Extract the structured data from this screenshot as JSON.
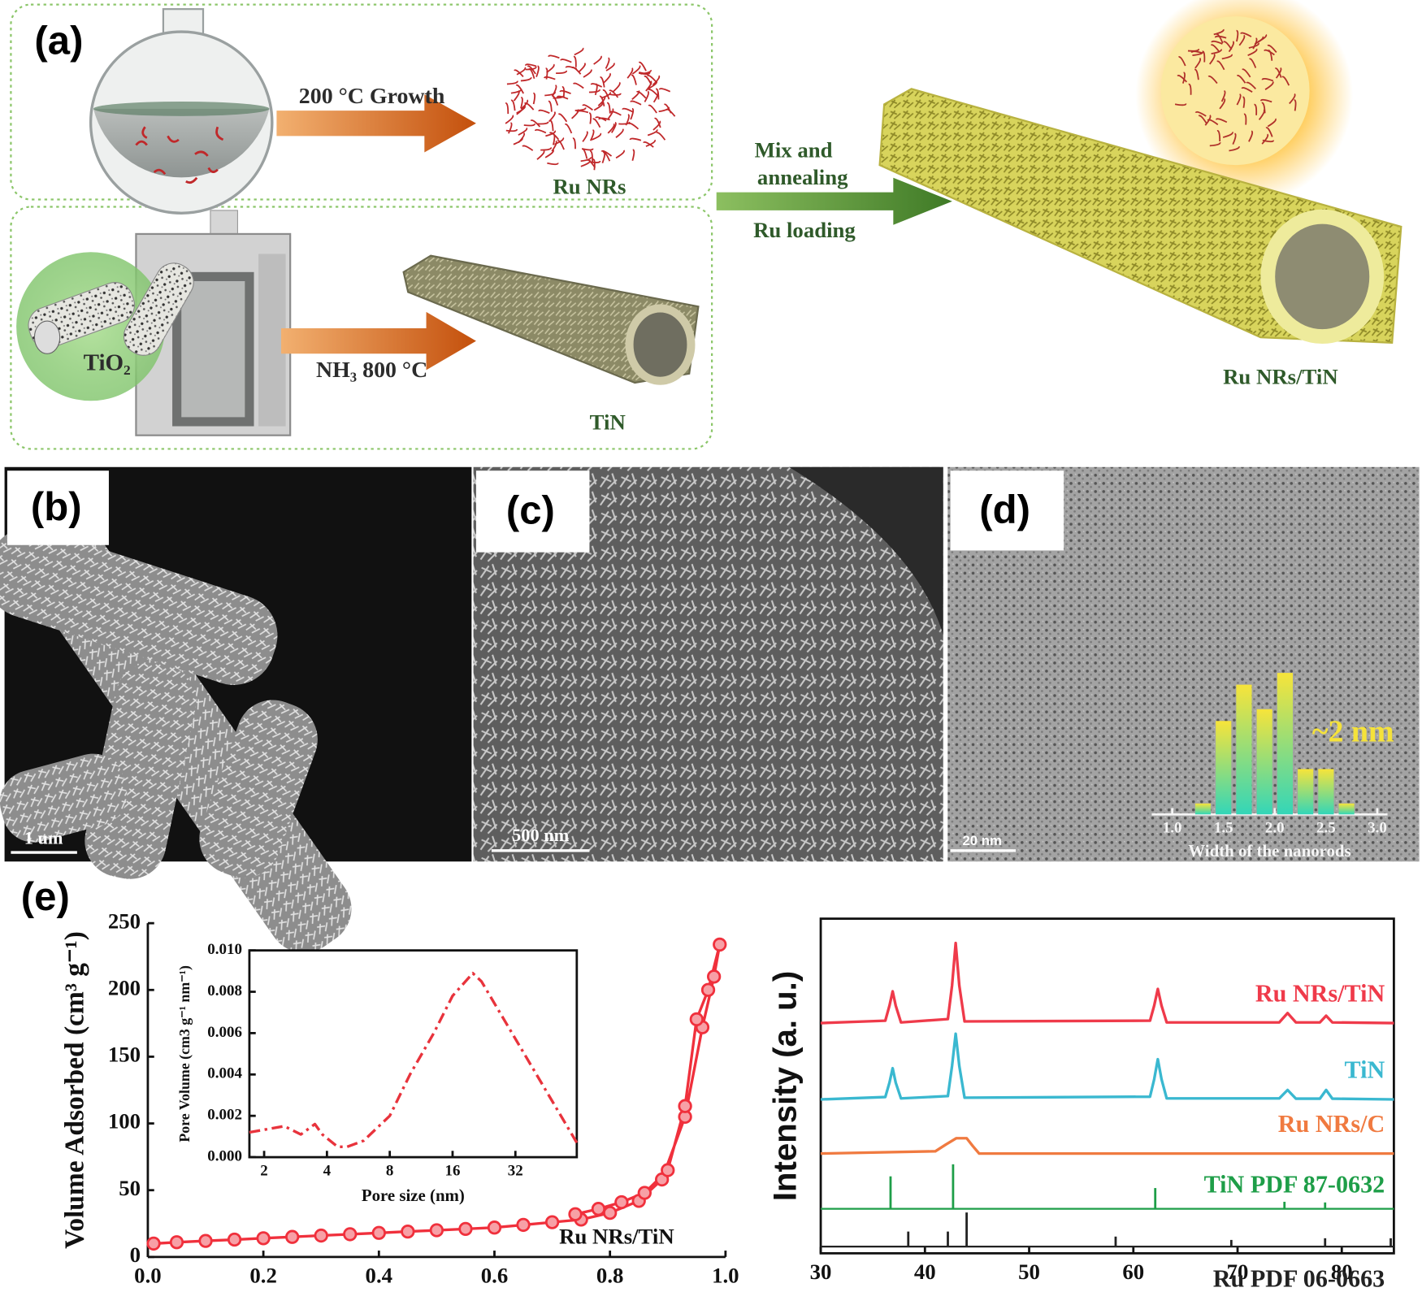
{
  "panels": {
    "a": {
      "label": "(a)",
      "growth": "200 °C Growth",
      "ru_nrs": "Ru NRs",
      "tio2": "TiO₂",
      "nh3": "NH₃ 800 °C",
      "tin": "TiN",
      "mix": "Mix and",
      "annealing": "annealing",
      "loading": "Ru loading",
      "product": "Ru NRs/TiN"
    },
    "b": {
      "label": "(b)",
      "scale_bar": "1 um"
    },
    "c": {
      "label": "(c)",
      "scale_bar": "500 nm"
    },
    "d": {
      "label": "(d)",
      "scale_bar": "20 nm"
    },
    "e": {
      "label": "(e)"
    }
  },
  "chart_data": [
    {
      "type": "histogram",
      "x_label": "Width of the nanorods",
      "annotation": "~2 nm",
      "bins": [
        1.2,
        1.4,
        1.6,
        1.8,
        2.0,
        2.2,
        2.4,
        2.6,
        2.8
      ],
      "values": [
        12,
        103,
        143,
        116,
        156,
        50,
        50,
        12
      ],
      "colors": [
        "#f7e43a",
        "#33d6b8"
      ],
      "xlim": [
        0.8,
        3.1
      ],
      "ylim": [
        0,
        160
      ],
      "xticks": [
        {
          "value": 1,
          "label": "1.0"
        },
        1.5,
        {
          "value": 2,
          "label": "2.0"
        },
        2.5,
        {
          "value": 3,
          "label": "3.0"
        }
      ]
    },
    {
      "type": "line",
      "y_label": "Volume Adsorbed (cm³ g⁻¹)",
      "x": [
        0.01,
        0.05,
        0.1,
        0.15,
        0.2,
        0.25,
        0.3,
        0.35,
        0.4,
        0.45,
        0.5,
        0.55,
        0.6,
        0.65,
        0.7,
        0.75,
        0.8,
        0.85,
        0.89,
        0.93,
        0.96,
        0.98,
        0.99,
        0.97,
        0.95,
        0.93,
        0.9,
        0.86,
        0.82,
        0.78,
        0.74
      ],
      "series": [
        {
          "name": "Ru NRs/TiN",
          "color": "#f0303c",
          "marker": true,
          "values": [
            10,
            11,
            12,
            13,
            14,
            15,
            16,
            17,
            18,
            19,
            20,
            21,
            22,
            24,
            26,
            28,
            33,
            42,
            58,
            105,
            172,
            210,
            234,
            200,
            178,
            113,
            65,
            48,
            41,
            36,
            32
          ]
        }
      ],
      "xlim": [
        0,
        1
      ],
      "ylim": [
        0,
        250
      ],
      "xticks": [
        {
          "value": 0,
          "label": "0.0"
        },
        0.2,
        0.4,
        0.6,
        0.8,
        {
          "value": 1,
          "label": "1.0"
        }
      ],
      "yticks": [
        0,
        50,
        100,
        150,
        200,
        250
      ]
    },
    {
      "type": "line",
      "x_label": "Pore size (nm)",
      "y_label": "Pore Volume (cm3 g⁻¹ nm⁻¹)",
      "xscale": "log",
      "x": [
        1.7,
        2.5,
        3,
        3.5,
        3.8,
        4.5,
        5,
        6,
        8,
        10,
        13,
        16,
        20,
        22,
        63
      ],
      "series": [
        {
          "name": null,
          "color": "#e8333c",
          "dash": "dash-dot",
          "values": [
            0.0012,
            0.0015,
            0.0011,
            0.0016,
            0.0011,
            0.0005,
            0.0005,
            0.0008,
            0.002,
            0.004,
            0.006,
            0.0078,
            0.0089,
            0.0085,
            0.0007
          ]
        }
      ],
      "xlim": [
        1.7,
        63
      ],
      "ylim": [
        0,
        0.01
      ],
      "xticks": [
        2,
        4,
        8,
        16,
        32
      ],
      "yticks": [
        {
          "value": 0,
          "label": "0.000"
        },
        {
          "value": 0.002,
          "label": "0.002"
        },
        {
          "value": 0.004,
          "label": "0.004"
        },
        {
          "value": 0.006,
          "label": "0.006"
        },
        {
          "value": 0.008,
          "label": "0.008"
        },
        {
          "value": 0.01,
          "label": "0.010"
        }
      ]
    },
    {
      "type": "line",
      "y_label": "Intensity (a. u.)",
      "series": [
        {
          "name": "Ru NRs/TiN",
          "color": "#ef3a4a",
          "x": [
            30,
            36.2,
            36.6,
            36.9,
            37.2,
            37.7,
            42.2,
            42.6,
            42.95,
            43.3,
            43.8,
            61.6,
            62.0,
            62.35,
            62.7,
            63.2,
            74.0,
            74.8,
            75.6,
            77.9,
            78.5,
            79.1,
            85
          ],
          "values": [
            68.8,
            69.5,
            74,
            78.3,
            74,
            69,
            70,
            80,
            92.7,
            80,
            69.3,
            69.5,
            74,
            79,
            74,
            69,
            69,
            71.8,
            69,
            69,
            71,
            69,
            68.8
          ]
        },
        {
          "name": "TiN",
          "color": "#3ab8d0",
          "x": [
            30,
            36.2,
            36.6,
            36.9,
            37.2,
            37.7,
            42.2,
            42.6,
            42.95,
            43.3,
            43.8,
            61.6,
            62.0,
            62.35,
            62.7,
            63.2,
            74.0,
            74.8,
            75.6,
            77.9,
            78.5,
            79.1,
            85
          ],
          "values": [
            46,
            46.7,
            51,
            55.3,
            51,
            46.3,
            47,
            56,
            65.6,
            56,
            46.5,
            46.8,
            52,
            58,
            52,
            46.3,
            46.3,
            48.8,
            46.2,
            46.2,
            48.8,
            46.2,
            46
          ]
        },
        {
          "name": "Ru NRs/C",
          "color": "#f07a40",
          "x": [
            30,
            41,
            42,
            43,
            44,
            44.6,
            45.2,
            85
          ],
          "values": [
            29.8,
            30.5,
            32.5,
            34.4,
            34.4,
            32,
            29.8,
            29.8
          ]
        },
        {
          "name": "TiN PDF 87-0632",
          "color": "#1e9e48",
          "style": "stick",
          "baseline": 13.3,
          "x": [
            36.7,
            42.7,
            62.1,
            74.5,
            78.4
          ],
          "values": [
            23,
            26.6,
            19.5,
            15.4,
            15.2
          ]
        },
        {
          "name": "Ru PDF 06-0663",
          "color": "#222222",
          "style": "stick",
          "baseline": 2,
          "x": [
            38.4,
            42.2,
            44.0,
            58.3,
            69.4,
            78.4,
            84.7
          ],
          "values": [
            6.5,
            6.5,
            12.2,
            5,
            4,
            4.5,
            4.5
          ]
        }
      ],
      "xlim": [
        30,
        85
      ],
      "ylim": [
        0,
        100
      ],
      "xticks": [
        30,
        40,
        50,
        60,
        70,
        80
      ]
    }
  ]
}
